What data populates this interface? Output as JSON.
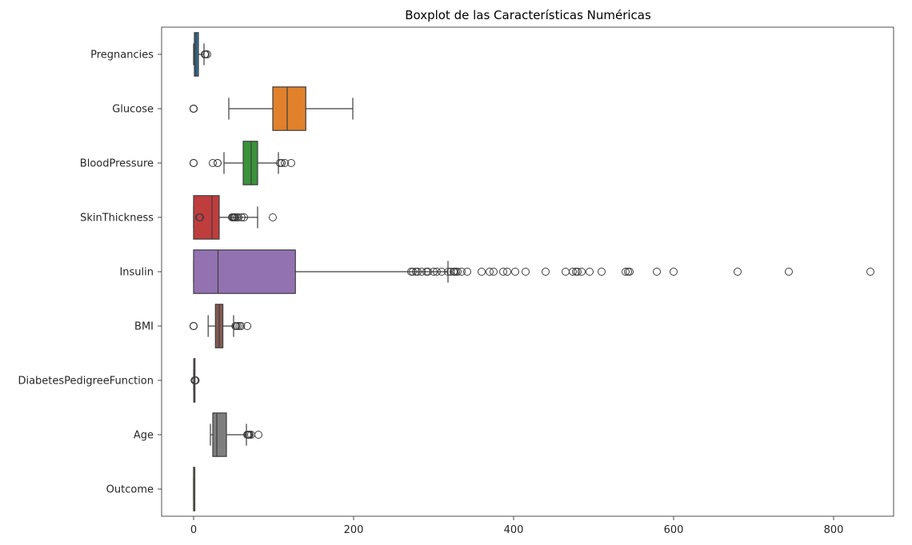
{
  "chart_data": {
    "type": "boxplot",
    "orientation": "horizontal",
    "title": "Boxplot de las Características Numéricas",
    "xlabel": "",
    "ylabel": "",
    "xlim": [
      -40,
      875
    ],
    "xticks": [
      0,
      200,
      400,
      600,
      800
    ],
    "grid": false,
    "legend": "none",
    "series": [
      {
        "name": "Pregnancies",
        "color": "#3274a1",
        "whisker_low": 0,
        "q1": 1,
        "median": 3,
        "q3": 6,
        "whisker_high": 13,
        "outliers": [
          14,
          15,
          17
        ]
      },
      {
        "name": "Glucose",
        "color": "#e1812c",
        "whisker_low": 44,
        "q1": 99,
        "median": 117,
        "q3": 140.25,
        "whisker_high": 199,
        "outliers": [
          0,
          0,
          0,
          0,
          0
        ]
      },
      {
        "name": "BloodPressure",
        "color": "#3a923a",
        "whisker_low": 38,
        "q1": 62,
        "median": 72,
        "q3": 80,
        "whisker_high": 106,
        "outliers": [
          0,
          0,
          0,
          24,
          30,
          30,
          108,
          110,
          110,
          114,
          122
        ]
      },
      {
        "name": "SkinThickness",
        "color": "#c03d3e",
        "whisker_low": 0,
        "q1": 0,
        "median": 23,
        "q3": 32,
        "whisker_high": 80,
        "outliers": [
          7,
          8,
          48,
          49,
          50,
          51,
          52,
          54,
          56,
          60,
          63,
          99
        ]
      },
      {
        "name": "Insulin",
        "color": "#9372b2",
        "whisker_low": 0,
        "q1": 0,
        "median": 30.5,
        "q3": 127.25,
        "whisker_high": 318,
        "outliers": [
          272,
          274,
          278,
          280,
          285,
          291,
          293,
          300,
          304,
          310,
          318,
          321,
          325,
          326,
          328,
          330,
          335,
          342,
          360,
          370,
          375,
          387,
          392,
          402,
          415,
          440,
          465,
          474,
          478,
          480,
          485,
          495,
          510,
          540,
          543,
          545,
          579,
          600,
          680,
          744,
          846
        ]
      },
      {
        "name": "BMI",
        "color": "#845b53",
        "whisker_low": 18.2,
        "q1": 27.3,
        "median": 32,
        "q3": 36.6,
        "whisker_high": 50,
        "outliers": [
          0,
          0,
          0,
          0,
          52.3,
          53.2,
          55,
          57.3,
          59.4,
          67.1
        ]
      },
      {
        "name": "DiabetesPedigreeFunction",
        "color": "#d684bd",
        "whisker_low": 0.078,
        "q1": 0.24,
        "median": 0.37,
        "q3": 0.63,
        "whisker_high": 1.2,
        "outliers": [
          1.3,
          1.6,
          1.9,
          2.1,
          2.3,
          2.42
        ]
      },
      {
        "name": "Age",
        "color": "#7f7f7f",
        "whisker_low": 21,
        "q1": 24,
        "median": 29,
        "q3": 41,
        "whisker_high": 66,
        "outliers": [
          67,
          68,
          69,
          70,
          72,
          81
        ]
      },
      {
        "name": "Outcome",
        "color": "#a9aa35",
        "whisker_low": 0,
        "q1": 0,
        "median": 0,
        "q3": 1,
        "whisker_high": 1,
        "outliers": []
      }
    ]
  }
}
